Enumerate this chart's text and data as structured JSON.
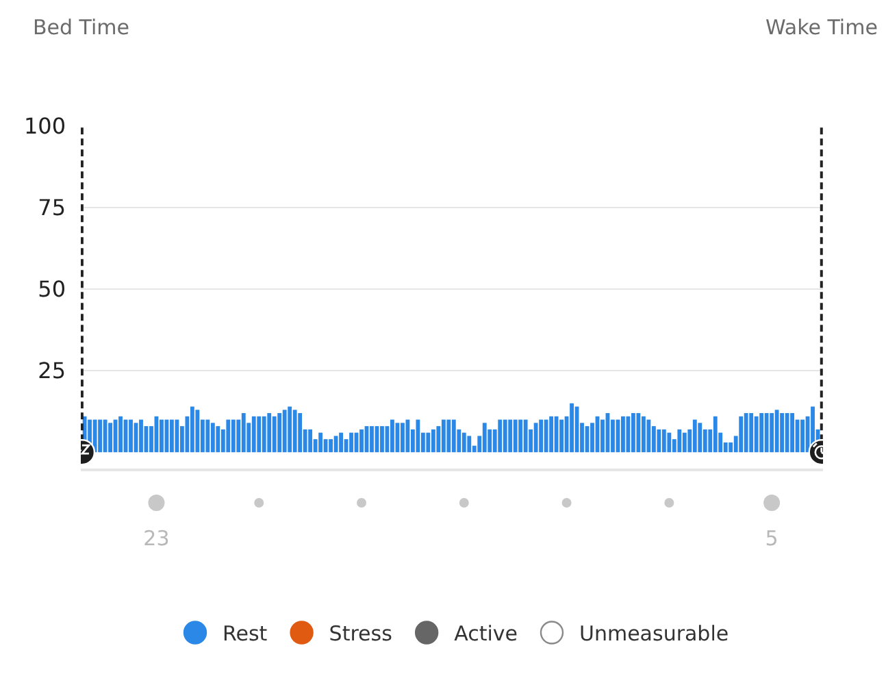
{
  "chart_data": {
    "type": "bar",
    "categories": [
      null,
      null,
      null,
      null,
      null,
      null,
      null,
      null,
      null,
      null,
      null,
      null,
      null,
      null,
      "23",
      null,
      null,
      null,
      null,
      null,
      null,
      null,
      null,
      null,
      null,
      null,
      null,
      null,
      null,
      null,
      null,
      null,
      null,
      null,
      null,
      null,
      null,
      null,
      null,
      null,
      null,
      null,
      null,
      null,
      null,
      null,
      null,
      null,
      null,
      null,
      null,
      null,
      null,
      null,
      null,
      null,
      null,
      null,
      null,
      null,
      null,
      null,
      null,
      null,
      null,
      null,
      null,
      null,
      null,
      null,
      null,
      null,
      null,
      null,
      null,
      null,
      null,
      null,
      null,
      null,
      null,
      null,
      null,
      null,
      null,
      null,
      null,
      null,
      null,
      null,
      null,
      null,
      null,
      null,
      null,
      null,
      null,
      null,
      null,
      null,
      null,
      null,
      null,
      null,
      null,
      null,
      null,
      null,
      null,
      null,
      null,
      null,
      null,
      null,
      null,
      null,
      null,
      null,
      null,
      null,
      null,
      null,
      null,
      null,
      null,
      null,
      null,
      null,
      null,
      null,
      null,
      null,
      null,
      null,
      "5",
      null,
      null,
      null,
      null,
      null,
      null,
      null,
      null,
      null
    ],
    "series": [
      {
        "name": "Rest",
        "color": "#2b88e6",
        "values": [
          11,
          10,
          10,
          10,
          10,
          9,
          10,
          11,
          10,
          10,
          9,
          10,
          8,
          8,
          11,
          10,
          10,
          10,
          10,
          8,
          11,
          14,
          13,
          10,
          10,
          9,
          8,
          7,
          10,
          10,
          10,
          12,
          9,
          11,
          11,
          11,
          12,
          11,
          12,
          13,
          14,
          13,
          12,
          7,
          7,
          4,
          6,
          4,
          4,
          5,
          6,
          4,
          6,
          6,
          7,
          8,
          8,
          8,
          8,
          8,
          10,
          9,
          9,
          10,
          7,
          10,
          6,
          6,
          7,
          8,
          10,
          10,
          10,
          7,
          6,
          5,
          2,
          5,
          9,
          7,
          7,
          10,
          10,
          10,
          10,
          10,
          10,
          7,
          9,
          10,
          10,
          11,
          11,
          10,
          11,
          15,
          14,
          9,
          8,
          9,
          11,
          10,
          12,
          10,
          10,
          11,
          11,
          12,
          12,
          11,
          10,
          8,
          7,
          7,
          6,
          4,
          7,
          6,
          7,
          10,
          9,
          7,
          7,
          11,
          6,
          3,
          3,
          5,
          11,
          12,
          12,
          11,
          12,
          12,
          12,
          13,
          12,
          12,
          12,
          10,
          10,
          11,
          14,
          7
        ]
      },
      {
        "name": "Stress",
        "color": "#e05a12",
        "values": [
          null,
          null,
          null,
          null,
          null,
          null,
          null,
          null,
          null,
          null,
          null,
          null,
          null,
          null,
          null,
          null,
          null,
          null,
          null,
          null,
          null,
          null,
          null,
          null,
          null,
          null,
          null,
          null,
          null,
          null,
          null,
          null,
          null,
          null,
          null,
          null,
          null,
          null,
          null,
          null,
          null,
          null,
          null,
          null,
          null,
          null,
          null,
          null,
          null,
          null,
          null,
          null,
          null,
          null,
          null,
          null,
          null,
          null,
          null,
          null,
          null,
          null,
          null,
          null,
          null,
          null,
          null,
          null,
          null,
          null,
          null,
          null,
          null,
          null,
          null,
          null,
          null,
          null,
          null,
          null,
          null,
          null,
          null,
          null,
          null,
          null,
          null,
          null,
          null,
          null,
          null,
          null,
          null,
          null,
          null,
          null,
          null,
          null,
          null,
          null,
          null,
          null,
          null,
          null,
          null,
          null,
          null,
          null,
          null,
          null,
          null,
          null,
          null,
          null,
          null,
          null,
          null,
          null,
          null,
          null,
          null,
          null,
          null,
          null,
          null,
          null,
          null,
          null,
          null,
          null,
          null,
          null,
          null,
          null,
          null,
          null,
          null,
          null,
          null,
          null,
          null,
          null,
          null,
          null
        ]
      },
      {
        "name": "Active",
        "color": "#666666",
        "values": [
          null,
          null,
          null,
          null,
          null,
          null,
          null,
          null,
          null,
          null,
          null,
          null,
          null,
          null,
          null,
          null,
          null,
          null,
          null,
          null,
          null,
          null,
          null,
          null,
          null,
          null,
          null,
          null,
          null,
          null,
          null,
          null,
          null,
          null,
          null,
          null,
          null,
          null,
          null,
          null,
          null,
          null,
          null,
          null,
          null,
          null,
          null,
          null,
          null,
          null,
          null,
          null,
          null,
          null,
          null,
          null,
          null,
          null,
          null,
          null,
          null,
          null,
          null,
          null,
          null,
          null,
          null,
          null,
          null,
          null,
          null,
          null,
          null,
          null,
          null,
          null,
          null,
          null,
          null,
          null,
          null,
          null,
          null,
          null,
          null,
          null,
          null,
          null,
          null,
          null,
          null,
          null,
          null,
          null,
          null,
          null,
          null,
          null,
          null,
          null,
          null,
          null,
          null,
          null,
          null,
          null,
          null,
          null,
          null,
          null,
          null,
          null,
          null,
          null,
          null,
          null,
          null,
          null,
          null,
          null,
          null,
          null,
          null,
          null,
          null,
          null,
          null,
          null,
          null,
          null,
          null,
          null,
          null,
          null,
          null,
          null,
          null,
          null,
          null,
          null,
          null,
          null,
          null,
          null
        ]
      },
      {
        "name": "Unmeasurable",
        "color": "#ffffff",
        "values": [
          null,
          null,
          null,
          null,
          null,
          null,
          null,
          null,
          null,
          null,
          null,
          null,
          null,
          null,
          null,
          null,
          null,
          null,
          null,
          null,
          null,
          null,
          null,
          null,
          null,
          null,
          null,
          null,
          null,
          null,
          null,
          null,
          null,
          null,
          null,
          null,
          null,
          null,
          null,
          null,
          null,
          null,
          null,
          null,
          null,
          null,
          null,
          null,
          null,
          null,
          null,
          null,
          null,
          null,
          null,
          null,
          null,
          null,
          null,
          null,
          null,
          null,
          null,
          null,
          null,
          null,
          null,
          null,
          null,
          null,
          null,
          null,
          null,
          null,
          null,
          null,
          null,
          null,
          null,
          null,
          null,
          null,
          null,
          null,
          null,
          null,
          null,
          null,
          null,
          null,
          null,
          null,
          null,
          null,
          null,
          null,
          null,
          null,
          null,
          null,
          null,
          null,
          null,
          null,
          null,
          null,
          null,
          null,
          null,
          null,
          null,
          null,
          null,
          null,
          null,
          null,
          null,
          null,
          null,
          null,
          null,
          null,
          null,
          null,
          null,
          null,
          null,
          null,
          null,
          null,
          null,
          null,
          null,
          null,
          null,
          null,
          null,
          null,
          null,
          null,
          null,
          null,
          null,
          null
        ]
      }
    ],
    "ylim": [
      -5,
      100
    ],
    "yticks": [
      25,
      50,
      75,
      100
    ],
    "grid": "y",
    "legend": "bottom",
    "annotations": [
      "Bed Time",
      "Wake Time"
    ]
  }
}
